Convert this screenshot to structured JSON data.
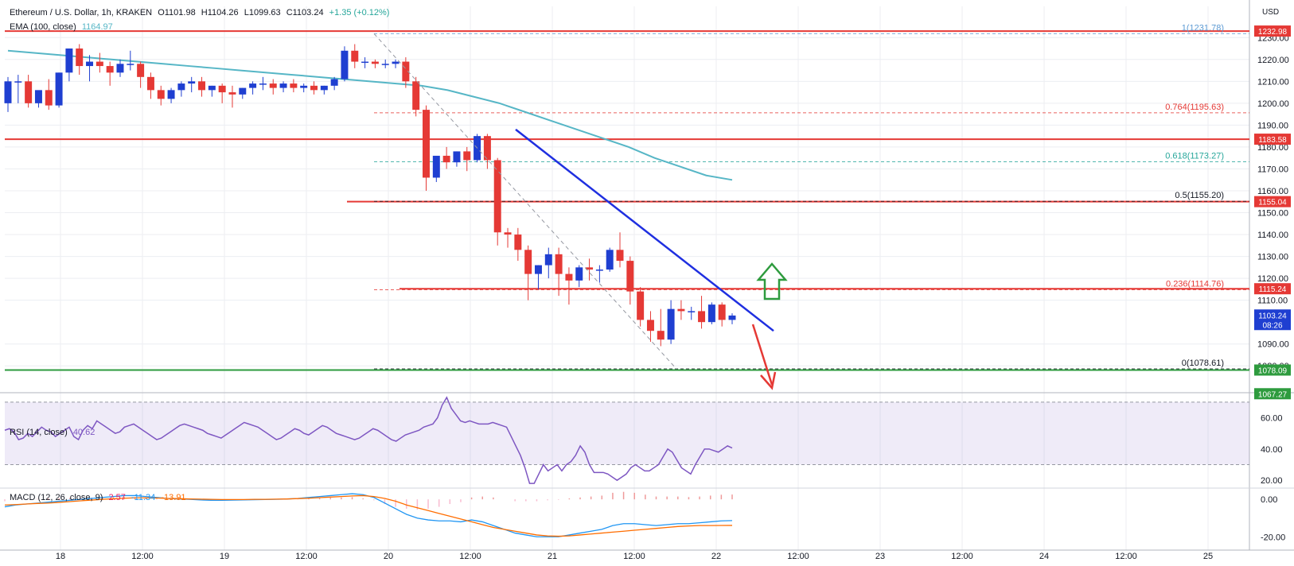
{
  "header": {
    "symbol": "Ethereum / U.S. Dollar, 1h, KRAKEN",
    "open": "O1101.98",
    "high": "H1104.26",
    "low": "L1099.63",
    "close": "C1103.24",
    "change": "+1.35 (+0.12%)",
    "currency": "USD"
  },
  "ema": {
    "label": "EMA (100, close)",
    "value": "1164.97"
  },
  "rsi": {
    "label": "RSI (14, close)",
    "value": "40.62"
  },
  "macd": {
    "label": "MACD (12, 26, close, 9)",
    "v1": "2.57",
    "v2": "-11.34",
    "v3": "-13.91"
  },
  "colors": {
    "up": "#1f3fd1",
    "down": "#e53935",
    "ema": "#56b6c6",
    "resistance": "#e53935",
    "support": "#2e9b3e",
    "trend": "#1f2fe0",
    "fib": "#e53935",
    "rsi": "#7e57c2",
    "macd": "#2196f3",
    "signal": "#ff6d00"
  },
  "chart_data": [
    {
      "type": "candlestick",
      "title": "Ethereum / U.S. Dollar, 1h, KRAKEN",
      "ylim": [
        1075,
        1237
      ],
      "y_ticks": [
        "1230.00",
        "1220.00",
        "1210.00",
        "1200.00",
        "1190.00",
        "1180.00",
        "1170.00",
        "1160.00",
        "1150.00",
        "1140.00",
        "1130.00",
        "1120.00",
        "1110.00",
        "1090.00",
        "1080.00"
      ],
      "x_tick_labels": [
        "18",
        "12:00",
        "19",
        "12:00",
        "20",
        "12:00",
        "21",
        "12:00",
        "22",
        "12:00",
        "23",
        "12:00",
        "24",
        "12:00",
        "25"
      ],
      "candles": [
        [
          1200,
          1212,
          1210,
          1196
        ],
        [
          1210,
          1213,
          1210,
          1200
        ],
        [
          1210,
          1213,
          1200,
          1198
        ],
        [
          1200,
          1202,
          1206,
          1198
        ],
        [
          1206,
          1211,
          1199,
          1197
        ],
        [
          1199,
          1214,
          1214,
          1198
        ],
        [
          1214,
          1225,
          1225,
          1210
        ],
        [
          1225,
          1227,
          1217,
          1213
        ],
        [
          1217,
          1222,
          1219,
          1210
        ],
        [
          1219,
          1223,
          1217,
          1214
        ],
        [
          1217,
          1219,
          1214,
          1208
        ],
        [
          1214,
          1220,
          1218,
          1212
        ],
        [
          1218,
          1224,
          1218,
          1215
        ],
        [
          1218,
          1219,
          1212,
          1207
        ],
        [
          1212,
          1214,
          1206,
          1202
        ],
        [
          1206,
          1208,
          1202,
          1199
        ],
        [
          1202,
          1207,
          1206,
          1200
        ],
        [
          1206,
          1210,
          1209,
          1203
        ],
        [
          1209,
          1212,
          1210,
          1205
        ],
        [
          1210,
          1212,
          1206,
          1203
        ],
        [
          1206,
          1208,
          1208,
          1203
        ],
        [
          1208,
          1209,
          1205,
          1200
        ],
        [
          1205,
          1208,
          1204,
          1198
        ],
        [
          1204,
          1207,
          1207,
          1202
        ],
        [
          1207,
          1210,
          1209,
          1204
        ],
        [
          1209,
          1212,
          1209,
          1206
        ],
        [
          1209,
          1211,
          1207,
          1204
        ],
        [
          1207,
          1210,
          1209,
          1205
        ],
        [
          1209,
          1211,
          1207,
          1205
        ],
        [
          1207,
          1209,
          1208,
          1205
        ],
        [
          1208,
          1210,
          1206,
          1204
        ],
        [
          1206,
          1208,
          1208,
          1204
        ],
        [
          1208,
          1212,
          1211,
          1206
        ],
        [
          1211,
          1226,
          1224,
          1210
        ],
        [
          1224,
          1227,
          1219,
          1216
        ],
        [
          1219,
          1221,
          1219,
          1216
        ],
        [
          1219,
          1220,
          1218,
          1216
        ],
        [
          1218,
          1220,
          1218,
          1216
        ],
        [
          1218,
          1220,
          1219,
          1216
        ],
        [
          1219,
          1221,
          1210,
          1207
        ],
        [
          1210,
          1212,
          1197,
          1194
        ],
        [
          1197,
          1199,
          1166,
          1160
        ],
        [
          1166,
          1174,
          1176,
          1164
        ],
        [
          1176,
          1180,
          1173,
          1170
        ],
        [
          1173,
          1178,
          1178,
          1171
        ],
        [
          1178,
          1180,
          1174,
          1169
        ],
        [
          1174,
          1186,
          1185,
          1173
        ],
        [
          1185,
          1186,
          1174,
          1170
        ],
        [
          1174,
          1175,
          1141,
          1135
        ],
        [
          1141,
          1143,
          1140,
          1134
        ],
        [
          1140,
          1143,
          1133,
          1128
        ],
        [
          1133,
          1135,
          1122,
          1110
        ],
        [
          1122,
          1126,
          1126,
          1115
        ],
        [
          1126,
          1134,
          1131,
          1120
        ],
        [
          1131,
          1134,
          1122,
          1112
        ],
        [
          1122,
          1125,
          1119,
          1108
        ],
        [
          1119,
          1126,
          1125,
          1116
        ],
        [
          1125,
          1129,
          1124,
          1119
        ],
        [
          1124,
          1126,
          1124,
          1118
        ],
        [
          1124,
          1134,
          1133,
          1123
        ],
        [
          1133,
          1141,
          1128,
          1125
        ],
        [
          1128,
          1130,
          1114,
          1108
        ],
        [
          1114,
          1116,
          1101,
          1098
        ],
        [
          1101,
          1105,
          1096,
          1091
        ],
        [
          1096,
          1106,
          1092,
          1089
        ],
        [
          1092,
          1110,
          1106,
          1090
        ],
        [
          1106,
          1110,
          1105,
          1101
        ],
        [
          1105,
          1107,
          1105,
          1101
        ],
        [
          1105,
          1112,
          1100,
          1097
        ],
        [
          1100,
          1109,
          1108,
          1099
        ],
        [
          1108,
          1109,
          1101,
          1098
        ],
        [
          1101,
          1104,
          1103,
          1099
        ]
      ],
      "ema_100": [
        1224,
        1223,
        1222,
        1221,
        1220,
        1219,
        1218,
        1217,
        1216,
        1215,
        1214,
        1213,
        1212,
        1211,
        1210,
        1209,
        1208,
        1206,
        1203,
        1200,
        1196,
        1192,
        1188,
        1184,
        1180,
        1175,
        1171,
        1167,
        1164.97
      ],
      "horizontal_lines": [
        {
          "value": 1232.98,
          "label": "1232.98",
          "color": "#e53935"
        },
        {
          "value": 1183.58,
          "label": "1183.58",
          "color": "#e53935"
        },
        {
          "value": 1155.04,
          "label": "1155.04",
          "color": "#e53935"
        },
        {
          "value": 1115.24,
          "label": "1115.24",
          "color": "#e53935"
        },
        {
          "value": 1078.09,
          "label": "1078.09",
          "color": "#2e9b3e"
        }
      ],
      "fib_levels": [
        {
          "ratio": "1",
          "value": 1231.78,
          "label": "1(1231.78)",
          "color": "#5d9ad3"
        },
        {
          "ratio": "0.764",
          "value": 1195.63,
          "label": "0.764(1195.63)",
          "color": "#e53935"
        },
        {
          "ratio": "0.618",
          "value": 1173.27,
          "label": "0.618(1173.27)",
          "color": "#26a69a"
        },
        {
          "ratio": "0.5",
          "value": 1155.2,
          "label": "0.5(1155.20)",
          "color": "#131722"
        },
        {
          "ratio": "0.236",
          "value": 1114.76,
          "label": "0.236(1114.76)",
          "color": "#e53935"
        },
        {
          "ratio": "0",
          "value": 1078.61,
          "label": "0(1078.61)",
          "color": "#131722"
        }
      ],
      "price_tags": [
        {
          "value": 1103.24,
          "label": "1103.24",
          "sub": "08:26",
          "color": "#1f3fd1"
        },
        {
          "value": 1067.27,
          "label": "1067.27",
          "color": "#2e9b3e"
        }
      ],
      "annotations": [
        "bearish trend line",
        "green up arrow",
        "red down arrow"
      ]
    },
    {
      "type": "line",
      "title": "RSI (14, close)",
      "ylim": [
        15,
        75
      ],
      "y_ticks": [
        "60.00",
        "40.00",
        "20.00"
      ],
      "band": [
        30,
        70
      ],
      "values": [
        52,
        53,
        51,
        46,
        47,
        50,
        48,
        51,
        54,
        52,
        51,
        48,
        50,
        52,
        54,
        48,
        46,
        52,
        55,
        53,
        58,
        56,
        54,
        52,
        50,
        51,
        54,
        55,
        56,
        54,
        52,
        50,
        48,
        46,
        47,
        49,
        51,
        53,
        55,
        56,
        55,
        54,
        53,
        52,
        50,
        49,
        48,
        47,
        49,
        51,
        53,
        55,
        57,
        56,
        55,
        54,
        52,
        50,
        48,
        46,
        47,
        49,
        51,
        53,
        52,
        50,
        49,
        51,
        53,
        55,
        54,
        52,
        50,
        49,
        48,
        47,
        46,
        47,
        49,
        51,
        53,
        52,
        50,
        48,
        46,
        45,
        47,
        49,
        50,
        51,
        52,
        54,
        55,
        56,
        60,
        68,
        73,
        66,
        62,
        58,
        57,
        58,
        57,
        56,
        56,
        56,
        57,
        56,
        55,
        54,
        48,
        42,
        36,
        28,
        18,
        18,
        24,
        30,
        26,
        28,
        30,
        26,
        30,
        32,
        36,
        42,
        38,
        30,
        25,
        25,
        25,
        24,
        22,
        20,
        22,
        24,
        28,
        30,
        28,
        26,
        26,
        28,
        30,
        35,
        40,
        38,
        33,
        28,
        26,
        24,
        30,
        35,
        40,
        40,
        39,
        38,
        40,
        42,
        40.62
      ]
    },
    {
      "type": "line",
      "title": "MACD (12, 26, close, 9)",
      "ylim": [
        -22,
        6
      ],
      "y_ticks": [
        "0.00",
        "-20.00"
      ],
      "macd": [
        -4,
        -3,
        -2.5,
        -2,
        -1.5,
        -1,
        -0.5,
        0,
        0.5,
        1,
        1.5,
        2,
        2,
        1.5,
        1,
        0.5,
        0.2,
        0,
        -0.3,
        -0.5,
        -0.5,
        -0.4,
        -0.3,
        -0.2,
        -0.1,
        0,
        0.2,
        0.5,
        1,
        1.5,
        2,
        2.5,
        3,
        2.5,
        1,
        -2,
        -5,
        -8,
        -10,
        -11,
        -11.5,
        -11.5,
        -12,
        -11,
        -12,
        -14,
        -16,
        -18,
        -19,
        -20,
        -20,
        -20,
        -19,
        -18,
        -17,
        -16,
        -14,
        -13,
        -13,
        -13.5,
        -14,
        -13.5,
        -13,
        -13,
        -12.5,
        -12,
        -11.5,
        -11.34
      ],
      "signal": [
        -3,
        -2.8,
        -2.5,
        -2.2,
        -2,
        -1.6,
        -1.2,
        -0.8,
        -0.4,
        0,
        0.3,
        0.6,
        0.8,
        0.8,
        0.7,
        0.5,
        0.4,
        0.2,
        0.1,
        0,
        -0.1,
        -0.1,
        -0.1,
        0,
        0,
        0.1,
        0.2,
        0.4,
        0.6,
        0.9,
        1.2,
        1.5,
        1.8,
        2,
        1.5,
        0.5,
        -1,
        -3,
        -4.5,
        -6,
        -7.5,
        -9,
        -10.5,
        -12,
        -13.5,
        -15,
        -16,
        -17,
        -18,
        -19,
        -19.5,
        -19.7,
        -19.5,
        -19,
        -18.5,
        -18,
        -17.5,
        -17,
        -16.5,
        -16,
        -15.5,
        -15,
        -14.5,
        -14.2,
        -14,
        -14,
        -13.95,
        -13.91
      ],
      "histogram": [
        2.57
      ]
    }
  ]
}
